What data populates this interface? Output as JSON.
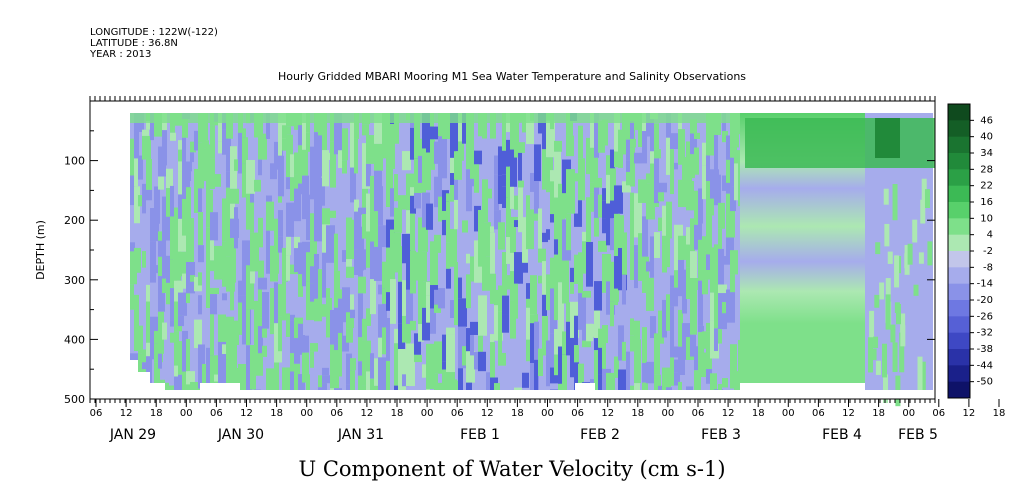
{
  "header": {
    "longitude": "LONGITUDE : 122W(-122)",
    "latitude": "LATITUDE : 36.8N",
    "year": "YEAR : 2013"
  },
  "chart_data": {
    "type": "heatmap",
    "title": "Hourly Gridded MBARI Mooring M1 Sea Water Temperature and Salinity Observations",
    "xlabel": "U Component of Water Velocity (cm s-1)",
    "ylabel": "DEPTH (m)",
    "y_range": [
      0,
      500
    ],
    "y_inverted": true,
    "y_ticks": [
      100,
      200,
      300,
      400,
      500
    ],
    "x_hour_labels": [
      "06",
      "12",
      "18",
      "00",
      "06",
      "12",
      "18",
      "00",
      "06",
      "12",
      "18",
      "00",
      "06",
      "12",
      "18",
      "00",
      "06",
      "12",
      "18",
      "00",
      "06",
      "12",
      "18",
      "00",
      "06",
      "12",
      "18",
      "00",
      "06",
      "12",
      "18",
      "00"
    ],
    "x_day_labels": [
      "JAN 29",
      "JAN 30",
      "JAN 31",
      "FEB  1",
      "FEB  2",
      "FEB  3",
      "FEB  4",
      "FEB  5"
    ],
    "colorbar_levels": [
      "46",
      "40",
      "34",
      "28",
      "22",
      "16",
      "10",
      "4",
      "-2",
      "-8",
      "-14",
      "-20",
      "-26",
      "-32",
      "-38",
      "-44",
      "-50"
    ],
    "colorbar_colors": [
      "#0f4a1e",
      "#145e26",
      "#1a7430",
      "#218a3a",
      "#2ba046",
      "#3cba55",
      "#58d06b",
      "#7ee08a",
      "#ace8b2",
      "#c2c6ea",
      "#a6acec",
      "#8a92e8",
      "#6e78e2",
      "#5660d6",
      "#3e48c4",
      "#2a32a8",
      "#1a208a",
      "#0e1268"
    ],
    "colors": {
      "green": "#7ee08a",
      "blue": "#a6acec",
      "deep_blue": "#4f5ed8"
    }
  }
}
